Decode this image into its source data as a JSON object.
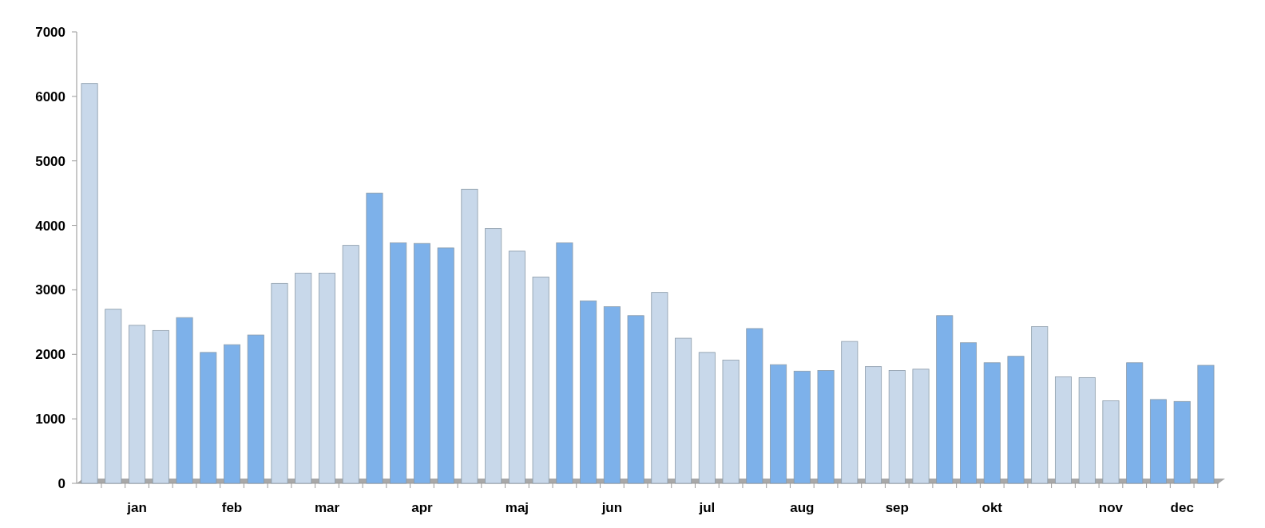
{
  "chart_data": {
    "type": "bar",
    "categories": [
      null,
      null,
      "jan",
      null,
      null,
      null,
      "feb",
      null,
      null,
      null,
      "mar",
      null,
      null,
      null,
      "apr",
      null,
      null,
      null,
      "maj",
      null,
      null,
      null,
      "jun",
      null,
      null,
      null,
      "jul",
      null,
      null,
      null,
      "aug",
      null,
      null,
      null,
      "sep",
      null,
      null,
      null,
      "okt",
      null,
      null,
      null,
      null,
      "nov",
      null,
      null,
      "dec",
      null
    ],
    "values": [
      6200,
      2700,
      2450,
      2370,
      2570,
      2030,
      2150,
      2300,
      3100,
      3260,
      3260,
      3690,
      4500,
      3730,
      3720,
      3650,
      4560,
      3950,
      3600,
      3200,
      3730,
      2830,
      2740,
      2600,
      2960,
      2250,
      2030,
      1910,
      2400,
      1840,
      1740,
      1750,
      2200,
      1810,
      1750,
      1770,
      2600,
      2180,
      1870,
      1970,
      2430,
      1650,
      1640,
      1280,
      1870,
      1300,
      1270,
      1830
    ],
    "colors": [
      "#c8d8ea",
      "#c8d8ea",
      "#c8d8ea",
      "#c8d8ea",
      "#7db1ea",
      "#7db1ea",
      "#7db1ea",
      "#7db1ea",
      "#c8d8ea",
      "#c8d8ea",
      "#c8d8ea",
      "#c8d8ea",
      "#7db1ea",
      "#7db1ea",
      "#7db1ea",
      "#7db1ea",
      "#c8d8ea",
      "#c8d8ea",
      "#c8d8ea",
      "#c8d8ea",
      "#7db1ea",
      "#7db1ea",
      "#7db1ea",
      "#7db1ea",
      "#c8d8ea",
      "#c8d8ea",
      "#c8d8ea",
      "#c8d8ea",
      "#7db1ea",
      "#7db1ea",
      "#7db1ea",
      "#7db1ea",
      "#c8d8ea",
      "#c8d8ea",
      "#c8d8ea",
      "#c8d8ea",
      "#7db1ea",
      "#7db1ea",
      "#7db1ea",
      "#7db1ea",
      "#c8d8ea",
      "#c8d8ea",
      "#c8d8ea",
      "#c8d8ea",
      "#7db1ea",
      "#7db1ea",
      "#7db1ea",
      "#7db1ea"
    ],
    "ylim": [
      0,
      7000
    ],
    "yticks": [
      0,
      1000,
      2000,
      3000,
      4000,
      5000,
      6000,
      7000
    ],
    "grid": false
  }
}
